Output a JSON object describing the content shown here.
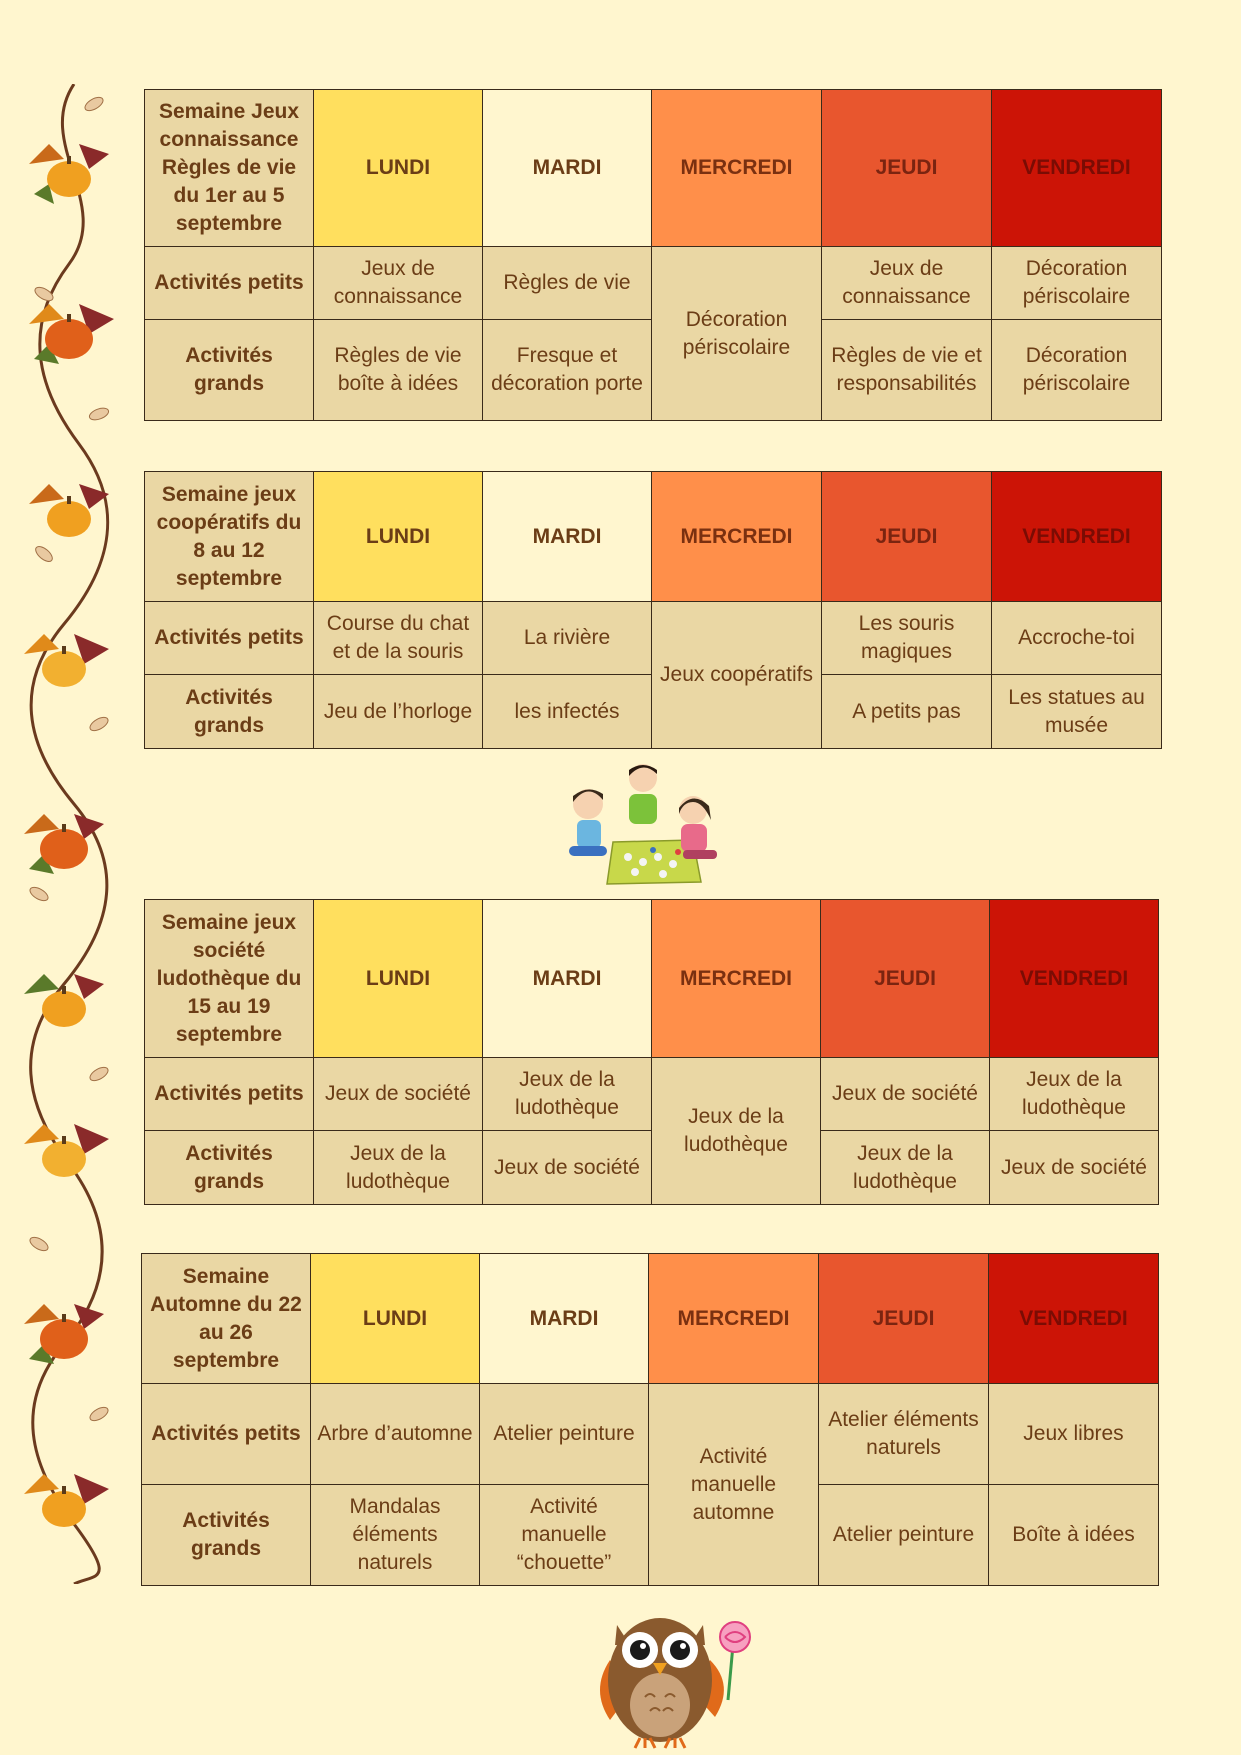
{
  "days": [
    "LUNDI",
    "MARDI",
    "MERCREDI",
    "JEUDI",
    "VENDREDI"
  ],
  "row_labels": {
    "petits": "Activités petits",
    "grands": "Activités grands"
  },
  "weeks": [
    {
      "title": "Semaine Jeux connaissance Règles de vie du 1er au 5 septembre",
      "lundi": {
        "petits": "Jeux de connaissance",
        "grands": "Règles de vie boîte à idées"
      },
      "mardi": {
        "petits": "Règles de vie",
        "grands": "Fresque et décoration porte"
      },
      "mercredi": "Décoration périscolaire",
      "jeudi": {
        "petits": "Jeux de connaissance",
        "grands": "Règles de vie et responsabilités"
      },
      "vendredi": {
        "petits": "Décoration périscolaire",
        "grands": "Décoration périscolaire"
      }
    },
    {
      "title": "Semaine jeux coopératifs du 8 au 12 septembre",
      "lundi": {
        "petits": "Course du chat et de la souris",
        "grands": "Jeu de l’horloge"
      },
      "mardi": {
        "petits": "La rivière",
        "grands": "les infectés"
      },
      "mercredi": "Jeux coopératifs",
      "jeudi": {
        "petits": "Les souris magiques",
        "grands": "A petits pas"
      },
      "vendredi": {
        "petits": "Accroche-toi",
        "grands": "Les statues au musée"
      }
    },
    {
      "title": "Semaine jeux société ludothèque du 15 au 19 septembre",
      "lundi": {
        "petits": "Jeux de société",
        "grands": "Jeux de la ludothèque"
      },
      "mardi": {
        "petits": "Jeux de la ludothèque",
        "grands": "Jeux de société"
      },
      "mercredi": "Jeux de la ludothèque",
      "jeudi": {
        "petits": "Jeux de société",
        "grands": "Jeux de la ludothèque"
      },
      "vendredi": {
        "petits": "Jeux de la ludothèque",
        "grands": "Jeux de société"
      }
    },
    {
      "title": "Semaine Automne du 22 au 26 septembre",
      "lundi": {
        "petits": "Arbre d’automne",
        "grands": "Mandalas éléments naturels"
      },
      "mardi": {
        "petits": "Atelier peinture",
        "grands": "Activité manuelle “chouette”"
      },
      "mercredi": "Activité manuelle automne",
      "jeudi": {
        "petits": "Atelier éléments naturels",
        "grands": "Atelier peinture"
      },
      "vendredi": {
        "petits": "Jeux libres",
        "grands": "Boîte à idées"
      }
    }
  ],
  "colors": {
    "background": "#fff6cf",
    "lundi": "#ffdf5e",
    "mardi": "#fff6cf",
    "mercredi": "#ff8f4a",
    "jeudi": "#e8562e",
    "vendredi": "#cc1406",
    "cell": "#ead7a4"
  },
  "illustrations": [
    "autumn-vine-decoration",
    "children-board-game-illustration",
    "owl-lollipop-illustration"
  ]
}
